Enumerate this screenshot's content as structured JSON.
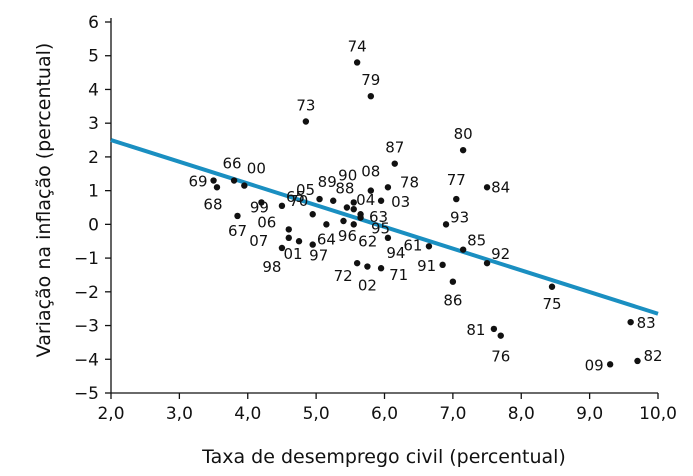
{
  "chart_data": {
    "type": "scatter",
    "title": "",
    "xlabel": "Taxa de desemprego civil (percentual)",
    "ylabel": "Variação na inflação (percentual)",
    "xlim": [
      2.0,
      10.0
    ],
    "ylim": [
      -5,
      6
    ],
    "x_ticks": [
      "2,0",
      "3,0",
      "4,0",
      "5,0",
      "6,0",
      "7,0",
      "8,0",
      "9,0",
      "10,0"
    ],
    "y_ticks": [
      "6",
      "5",
      "4",
      "3",
      "2",
      "1",
      "0",
      "−1",
      "−2",
      "−3",
      "−4",
      "−5"
    ],
    "trend_line": {
      "x": [
        2.0,
        10.0
      ],
      "y": [
        2.5,
        -2.65
      ],
      "color": "#1a8fc1"
    },
    "point_color": "#111111",
    "points": [
      {
        "label": "74",
        "x": 5.6,
        "y": 4.8
      },
      {
        "label": "79",
        "x": 5.8,
        "y": 3.8
      },
      {
        "label": "73",
        "x": 4.85,
        "y": 3.05
      },
      {
        "label": "80",
        "x": 7.15,
        "y": 2.2
      },
      {
        "label": "87",
        "x": 6.15,
        "y": 1.8
      },
      {
        "label": "66",
        "x": 3.8,
        "y": 1.3
      },
      {
        "label": "00",
        "x": 3.95,
        "y": 1.15
      },
      {
        "label": "69",
        "x": 3.5,
        "y": 1.3
      },
      {
        "label": "68",
        "x": 3.55,
        "y": 1.1
      },
      {
        "label": "05",
        "x": 5.05,
        "y": 0.75
      },
      {
        "label": "89",
        "x": 5.25,
        "y": 0.7
      },
      {
        "label": "90",
        "x": 5.55,
        "y": 0.65
      },
      {
        "label": "08",
        "x": 5.8,
        "y": 1.0
      },
      {
        "label": "78",
        "x": 6.05,
        "y": 1.1
      },
      {
        "label": "77",
        "x": 7.05,
        "y": 0.75
      },
      {
        "label": "84",
        "x": 7.5,
        "y": 1.1
      },
      {
        "label": "88",
        "x": 5.45,
        "y": 0.5
      },
      {
        "label": "04",
        "x": 5.55,
        "y": 0.45
      },
      {
        "label": "03",
        "x": 5.95,
        "y": 0.7
      },
      {
        "label": "65",
        "x": 4.5,
        "y": 0.55
      },
      {
        "label": "99",
        "x": 4.2,
        "y": 0.65
      },
      {
        "label": "67",
        "x": 3.85,
        "y": 0.25
      },
      {
        "label": "70",
        "x": 4.95,
        "y": 0.3
      },
      {
        "label": "63",
        "x": 5.65,
        "y": 0.3
      },
      {
        "label": "93",
        "x": 6.9,
        "y": 0.0
      },
      {
        "label": "06",
        "x": 4.6,
        "y": -0.15
      },
      {
        "label": "64",
        "x": 5.15,
        "y": 0.0
      },
      {
        "label": "96",
        "x": 5.4,
        "y": 0.1
      },
      {
        "label": "62",
        "x": 5.55,
        "y": 0.0
      },
      {
        "label": "95",
        "x": 5.65,
        "y": 0.2
      },
      {
        "label": "07",
        "x": 4.6,
        "y": -0.4
      },
      {
        "label": "01",
        "x": 4.75,
        "y": -0.5
      },
      {
        "label": "97",
        "x": 4.95,
        "y": -0.6
      },
      {
        "label": "98",
        "x": 4.5,
        "y": -0.7
      },
      {
        "label": "94",
        "x": 6.05,
        "y": -0.4
      },
      {
        "label": "61",
        "x": 6.65,
        "y": -0.65
      },
      {
        "label": "85",
        "x": 7.15,
        "y": -0.75
      },
      {
        "label": "91",
        "x": 6.85,
        "y": -1.2
      },
      {
        "label": "92",
        "x": 7.5,
        "y": -1.15
      },
      {
        "label": "72",
        "x": 5.6,
        "y": -1.15
      },
      {
        "label": "02",
        "x": 5.75,
        "y": -1.25
      },
      {
        "label": "71",
        "x": 5.95,
        "y": -1.3
      },
      {
        "label": "86",
        "x": 7.0,
        "y": -1.7
      },
      {
        "label": "75",
        "x": 8.45,
        "y": -1.85
      },
      {
        "label": "81",
        "x": 7.6,
        "y": -3.1
      },
      {
        "label": "76",
        "x": 7.7,
        "y": -3.3
      },
      {
        "label": "83",
        "x": 9.6,
        "y": -2.9
      },
      {
        "label": "09",
        "x": 9.3,
        "y": -4.15
      },
      {
        "label": "82",
        "x": 9.7,
        "y": -4.05
      }
    ]
  }
}
